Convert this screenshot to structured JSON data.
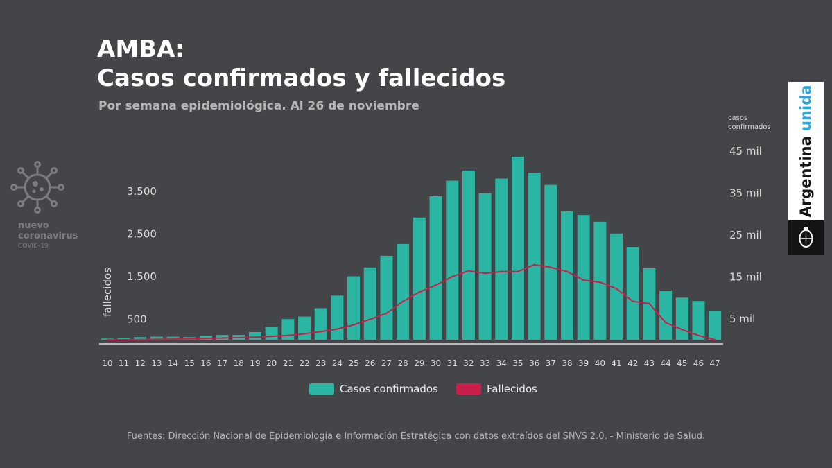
{
  "header": {
    "title_line1": "AMBA:",
    "title_line2": "Casos confirmados y fallecidos",
    "subtitle": "Por semana epidemiológica. Al 26 de noviembre"
  },
  "badge": {
    "line1": "nuevo",
    "line2": "coronavirus",
    "line3": "COVID-19",
    "icon": "virus-icon"
  },
  "brand": {
    "text_main": "Argentina",
    "text_accent": "unida",
    "accent_color": "#29a7e1",
    "emblem": "national-emblem-icon"
  },
  "chart_data": {
    "type": "bar+line",
    "x": [
      "10",
      "11",
      "12",
      "13",
      "14",
      "15",
      "16",
      "17",
      "18",
      "19",
      "20",
      "21",
      "22",
      "23",
      "24",
      "25",
      "26",
      "27",
      "28",
      "29",
      "30",
      "31",
      "32",
      "33",
      "34",
      "35",
      "36",
      "37",
      "38",
      "39",
      "40",
      "41",
      "42",
      "43",
      "44",
      "45",
      "46",
      "47"
    ],
    "series": [
      {
        "name": "Casos confirmados",
        "type": "bar",
        "axis": "right",
        "color": "#2bb6a4",
        "values": [
          150,
          200,
          500,
          600,
          600,
          500,
          800,
          1000,
          1000,
          1700,
          3000,
          4800,
          5400,
          7400,
          10400,
          15000,
          17100,
          19900,
          22700,
          29000,
          34100,
          37800,
          40200,
          34800,
          38300,
          43500,
          39700,
          36800,
          30500,
          29600,
          28000,
          25200,
          22000,
          16900,
          11600,
          9900,
          9100,
          6800
        ]
      },
      {
        "name": "Fallecidos",
        "type": "line",
        "axis": "left",
        "color": "#c8204a",
        "values": [
          0,
          0,
          5,
          10,
          15,
          20,
          30,
          40,
          50,
          60,
          80,
          100,
          140,
          190,
          250,
          350,
          480,
          620,
          900,
          1120,
          1280,
          1480,
          1620,
          1560,
          1600,
          1600,
          1760,
          1700,
          1600,
          1400,
          1350,
          1200,
          900,
          850,
          400,
          240,
          100,
          0
        ]
      }
    ],
    "left_axis": {
      "label": "fallecidos",
      "ticks": [
        500,
        1500,
        2500,
        3500
      ],
      "tick_labels": [
        "500",
        "1.500",
        "2.500",
        "3.500"
      ],
      "range": [
        0,
        4500
      ]
    },
    "right_axis": {
      "label_line1": "casos",
      "label_line2": "confirmados",
      "ticks": [
        5000,
        15000,
        25000,
        35000,
        45000
      ],
      "tick_labels": [
        "5 mil",
        "15 mil",
        "25 mil",
        "35 mil",
        "45 mil"
      ],
      "range": [
        -3000,
        45000
      ]
    },
    "legend_position": "bottom-center",
    "grid": false
  },
  "footer": {
    "source": "Fuentes: Dirección Nacional de Epidemiología e Información Estratégica con datos extraídos del SNVS 2.0. - Ministerio de Salud."
  }
}
